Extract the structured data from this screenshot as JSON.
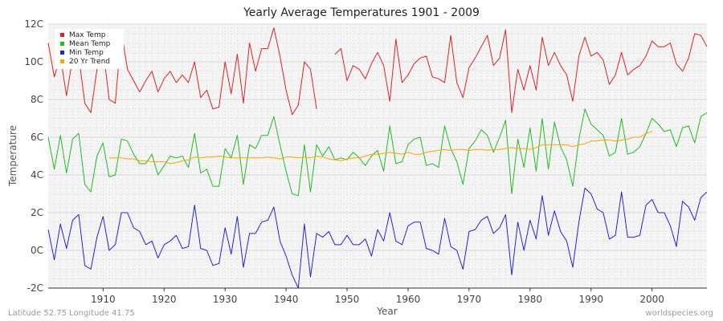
{
  "chart_data": {
    "type": "line",
    "title": "Yearly Average Temperatures 1901 - 2009",
    "xlabel": "Year",
    "ylabel": "Temperature",
    "xlim": [
      1901,
      2009
    ],
    "ylim": [
      -2,
      12
    ],
    "x_ticks": [
      1910,
      1920,
      1930,
      1940,
      1950,
      1960,
      1970,
      1980,
      1990,
      2000
    ],
    "y_ticks": [
      {
        "value": 12,
        "label": "12C"
      },
      {
        "value": 10,
        "label": "10C"
      },
      {
        "value": 8,
        "label": "8C"
      },
      {
        "value": 6,
        "label": "6C"
      },
      {
        "value": 4,
        "label": "4C"
      },
      {
        "value": 2,
        "label": "2C"
      },
      {
        "value": 0,
        "label": "0C"
      },
      {
        "value": -2,
        "label": "-2C"
      }
    ],
    "grid": true,
    "legend_position": "top-left",
    "x_start": 1901,
    "series": [
      {
        "name": "Max Temp",
        "color": "#dd2222",
        "values": [
          11.0,
          9.2,
          10.3,
          8.2,
          10.2,
          10.3,
          7.8,
          7.3,
          9.6,
          10.7,
          8.0,
          7.8,
          11.6,
          9.6,
          9.0,
          8.4,
          9.0,
          9.5,
          8.4,
          9.1,
          9.5,
          8.9,
          9.3,
          8.9,
          10.0,
          8.1,
          8.5,
          7.5,
          7.6,
          10.0,
          8.3,
          10.4,
          7.8,
          11.0,
          9.5,
          10.7,
          10.7,
          11.8,
          10.3,
          8.5,
          7.2,
          7.7,
          10.0,
          9.6,
          7.5,
          null,
          null,
          10.4,
          10.7,
          9.0,
          9.8,
          9.6,
          9.1,
          9.9,
          10.5,
          9.8,
          7.9,
          11.2,
          8.9,
          9.3,
          9.9,
          10.2,
          10.3,
          9.2,
          9.1,
          8.9,
          11.4,
          8.9,
          8.1,
          9.7,
          10.2,
          10.8,
          11.4,
          9.8,
          10.2,
          11.7,
          7.3,
          9.6,
          8.5,
          9.8,
          8.5,
          11.3,
          9.8,
          10.5,
          9.8,
          9.3,
          7.9,
          10.3,
          11.3,
          10.3,
          10.5,
          10.1,
          8.8,
          9.3,
          10.5,
          9.3,
          9.6,
          9.8,
          10.3,
          11.1,
          10.8,
          10.8,
          11.0,
          9.9,
          9.5,
          10.2,
          11.5,
          11.4,
          10.8
        ]
      },
      {
        "name": "Mean Temp",
        "color": "#22bb22",
        "values": [
          6.0,
          4.3,
          6.1,
          4.1,
          5.9,
          6.2,
          3.5,
          3.1,
          5.0,
          5.7,
          3.9,
          4.0,
          5.9,
          5.8,
          5.1,
          4.6,
          4.6,
          5.1,
          4.0,
          4.5,
          5.0,
          4.9,
          5.0,
          4.4,
          6.2,
          4.1,
          4.3,
          3.4,
          3.4,
          5.4,
          4.9,
          6.1,
          3.5,
          5.6,
          5.4,
          6.1,
          6.1,
          7.1,
          5.6,
          4.2,
          3.0,
          2.9,
          5.6,
          3.1,
          5.6,
          5.0,
          5.5,
          4.8,
          4.9,
          4.8,
          5.2,
          4.9,
          4.5,
          5.0,
          5.3,
          4.2,
          6.6,
          4.6,
          4.7,
          5.6,
          5.9,
          6.0,
          4.5,
          4.6,
          4.4,
          6.6,
          5.4,
          4.7,
          3.5,
          5.4,
          5.8,
          6.4,
          6.1,
          5.2,
          6.0,
          6.9,
          3.0,
          5.9,
          4.4,
          6.5,
          4.2,
          7.0,
          4.3,
          6.8,
          5.5,
          4.8,
          3.4,
          5.9,
          7.5,
          6.7,
          6.4,
          6.1,
          5.0,
          5.2,
          7.0,
          5.1,
          5.2,
          5.5,
          6.2,
          7.0,
          6.7,
          6.3,
          6.4,
          5.5,
          6.5,
          6.6,
          5.7,
          7.1,
          7.3
        ]
      },
      {
        "name": "Min Temp",
        "color": "#2222dd",
        "values": [
          1.1,
          -0.5,
          1.4,
          0.1,
          1.6,
          1.9,
          -0.8,
          -1.0,
          0.7,
          1.8,
          0.0,
          0.3,
          2.0,
          2.0,
          1.2,
          1.0,
          0.3,
          0.5,
          -0.4,
          0.3,
          0.5,
          0.8,
          0.1,
          0.2,
          2.4,
          0.1,
          0.0,
          -0.8,
          -0.7,
          1.2,
          -0.2,
          1.8,
          -0.9,
          0.9,
          0.9,
          1.5,
          1.6,
          2.3,
          0.5,
          -0.3,
          -1.3,
          -2.0,
          1.4,
          -1.4,
          0.9,
          0.7,
          1.0,
          0.3,
          0.3,
          0.8,
          0.3,
          0.3,
          0.6,
          -0.3,
          1.1,
          0.5,
          2.0,
          0.5,
          0.3,
          1.3,
          1.5,
          1.5,
          0.1,
          0.0,
          -0.2,
          1.7,
          0.2,
          0.0,
          -1.0,
          1.0,
          1.1,
          1.6,
          1.8,
          0.9,
          1.2,
          1.9,
          -1.3,
          1.5,
          0.0,
          1.6,
          0.6,
          2.9,
          0.8,
          2.1,
          1.0,
          0.5,
          -0.9,
          1.5,
          3.3,
          3.0,
          2.2,
          2.0,
          0.6,
          0.8,
          3.1,
          0.7,
          0.7,
          0.8,
          2.4,
          2.7,
          2.0,
          2.0,
          1.3,
          0.2,
          2.6,
          2.3,
          1.6,
          2.8,
          3.1
        ]
      },
      {
        "name": "20 Yr Trend",
        "color": "#ffa500",
        "values": [
          null,
          null,
          null,
          null,
          null,
          null,
          null,
          null,
          null,
          null,
          4.9,
          4.9,
          4.9,
          4.85,
          4.85,
          4.75,
          4.75,
          4.7,
          4.7,
          4.7,
          4.6,
          4.65,
          4.75,
          4.8,
          4.95,
          4.9,
          4.95,
          4.95,
          5.0,
          4.95,
          4.9,
          4.9,
          4.9,
          4.9,
          4.9,
          4.9,
          4.95,
          4.9,
          4.85,
          4.95,
          4.95,
          4.9,
          4.95,
          4.9,
          5.0,
          4.95,
          4.85,
          4.8,
          4.75,
          4.85,
          4.9,
          4.9,
          5.0,
          5.1,
          5.1,
          5.15,
          5.2,
          5.15,
          5.1,
          5.2,
          5.1,
          5.1,
          5.2,
          5.25,
          5.3,
          5.35,
          5.3,
          5.35,
          5.35,
          5.3,
          5.35,
          5.35,
          5.3,
          5.35,
          5.35,
          5.4,
          5.45,
          5.4,
          5.4,
          5.35,
          5.45,
          5.6,
          5.6,
          5.6,
          5.6,
          5.6,
          5.5,
          5.6,
          5.65,
          5.8,
          5.8,
          5.85,
          5.85,
          5.8,
          5.85,
          5.9,
          6.0,
          6.0,
          6.2,
          6.3,
          null,
          null,
          null,
          null,
          null,
          null,
          null,
          null,
          null
        ]
      }
    ]
  },
  "footer": {
    "location": "Latitude 52.75 Longitude 41.75",
    "source": "worldspecies.org"
  }
}
